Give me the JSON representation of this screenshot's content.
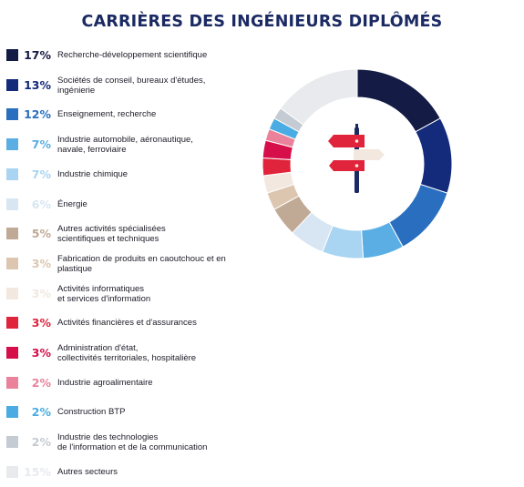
{
  "title": "CARRIÈRES DES INGÉNIEURS DIPLÔMÉS",
  "chart_data": {
    "type": "pie",
    "variant": "donut",
    "title": "CARRIÈRES DES INGÉNIEURS DIPLÔMÉS",
    "legend_placement": "left",
    "start_angle": "top, clockwise",
    "slices": [
      {
        "label": "Recherche-développement scientifique",
        "value": 17,
        "value_label": "17%",
        "color": "#141b45"
      },
      {
        "label": "Sociétés de conseil, bureaux d'études,\ningénierie",
        "value": 13,
        "value_label": "13%",
        "color": "#142a7b"
      },
      {
        "label": "Enseignement, recherche",
        "value": 12,
        "value_label": "12%",
        "color": "#2a6fbf"
      },
      {
        "label": "Industrie automobile, aéronautique,\nnavale, ferroviaire",
        "value": 7,
        "value_label": "7%",
        "color": "#5aaee3"
      },
      {
        "label": "Industrie chimique",
        "value": 7,
        "value_label": "7%",
        "color": "#a9d4f2"
      },
      {
        "label": "Énergie",
        "value": 6,
        "value_label": "6%",
        "color": "#d7e6f2"
      },
      {
        "label": "Autres activités spécialisées\nscientifiques et techniques",
        "value": 5,
        "value_label": "5%",
        "color": "#c1aa95"
      },
      {
        "label": "Fabrication de produits en caoutchouc et en\nplastique",
        "value": 3,
        "value_label": "3%",
        "color": "#dcc6b0"
      },
      {
        "label": "Activités informatiques\net services d'information",
        "value": 3,
        "value_label": "3%",
        "color": "#f2e8df"
      },
      {
        "label": "Activités financières et d'assurances",
        "value": 3,
        "value_label": "3%",
        "color": "#e0243c"
      },
      {
        "label": "Administration d'état,\ncollectivités territoriales, hospitalière",
        "value": 3,
        "value_label": "3%",
        "color": "#d60f4b"
      },
      {
        "label": "Industrie agroalimentaire",
        "value": 2,
        "value_label": "2%",
        "color": "#e9829a"
      },
      {
        "label": "Construction BTP",
        "value": 2,
        "value_label": "2%",
        "color": "#4aace2"
      },
      {
        "label": "Industrie des technologies\nde l'information et de la communication",
        "value": 2,
        "value_label": "2%",
        "color": "#c4cbd3"
      },
      {
        "label": "Autres secteurs",
        "value": 15,
        "value_label": "15%",
        "color": "#e8eaee"
      }
    ]
  },
  "icon": {
    "name": "signpost-icon",
    "colors": {
      "post": "#1b2a63",
      "red": "#e0243c",
      "light": "#f2e8df"
    }
  }
}
